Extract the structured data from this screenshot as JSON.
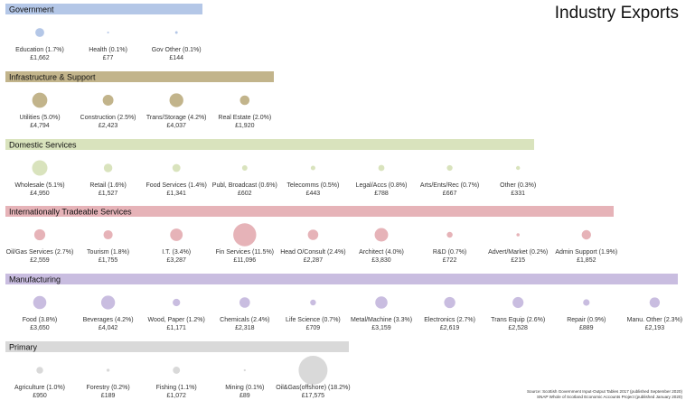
{
  "title": "Industry Exports",
  "source_lines": [
    "Source: Scottish Government Input-Output Tables 2017 (published September 2020)",
    "SNAP Whole of Scotland Economic Accounts Project (published January 2020)"
  ],
  "chart_data": {
    "type": "bubble",
    "title": "Industry Exports",
    "value_unit": "£",
    "groups": [
      {
        "name": "Government",
        "color": "#b4c7e7",
        "items": [
          {
            "label": "Education (1.7%)",
            "value": 1662,
            "value_label": "£1,662"
          },
          {
            "label": "Health (0.1%)",
            "value": 77,
            "value_label": "£77"
          },
          {
            "label": "Gov Other (0.1%)",
            "value": 144,
            "value_label": "£144"
          }
        ]
      },
      {
        "name": "Infrastructure & Support",
        "color": "#c2b48b",
        "items": [
          {
            "label": "Utilities (5.0%)",
            "value": 4794,
            "value_label": "£4,794"
          },
          {
            "label": "Construction (2.5%)",
            "value": 2423,
            "value_label": "£2,423"
          },
          {
            "label": "Trans/Storage (4.2%)",
            "value": 4037,
            "value_label": "£4,037"
          },
          {
            "label": "Real Estate (2.0%)",
            "value": 1920,
            "value_label": "£1,920"
          }
        ]
      },
      {
        "name": "Domestic Services",
        "color": "#d9e3bd",
        "items": [
          {
            "label": "Wholesale (5.1%)",
            "value": 4950,
            "value_label": "£4,950"
          },
          {
            "label": "Retail (1.6%)",
            "value": 1527,
            "value_label": "£1,527"
          },
          {
            "label": "Food Services (1.4%)",
            "value": 1341,
            "value_label": "£1,341"
          },
          {
            "label": "Publ, Broadcast (0.6%)",
            "value": 602,
            "value_label": "£602"
          },
          {
            "label": "Telecomms (0.5%)",
            "value": 443,
            "value_label": "£443"
          },
          {
            "label": "Legal/Accs (0.8%)",
            "value": 788,
            "value_label": "£788"
          },
          {
            "label": "Arts/Ents/Rec (0.7%)",
            "value": 667,
            "value_label": "£667"
          },
          {
            "label": "Other (0.3%)",
            "value": 331,
            "value_label": "£331"
          }
        ]
      },
      {
        "name": "Internationally Tradeable Services",
        "color": "#e6b3b8",
        "items": [
          {
            "label": "Oil/Gas Services (2.7%)",
            "value": 2559,
            "value_label": "£2,559"
          },
          {
            "label": "Tourism (1.8%)",
            "value": 1755,
            "value_label": "£1,755"
          },
          {
            "label": "I.T. (3.4%)",
            "value": 3287,
            "value_label": "£3,287"
          },
          {
            "label": "Fin Services (11.5%)",
            "value": 11096,
            "value_label": "£11,096"
          },
          {
            "label": "Head O/Consult (2.4%)",
            "value": 2287,
            "value_label": "£2,287"
          },
          {
            "label": "Architect (4.0%)",
            "value": 3830,
            "value_label": "£3,830"
          },
          {
            "label": "R&D (0.7%)",
            "value": 722,
            "value_label": "£722"
          },
          {
            "label": "Advert/Market (0.2%)",
            "value": 215,
            "value_label": "£215"
          },
          {
            "label": "Admin Support (1.9%)",
            "value": 1852,
            "value_label": "£1,852"
          }
        ]
      },
      {
        "name": "Manufacturing",
        "color": "#c9bde0",
        "items": [
          {
            "label": "Food (3.8%)",
            "value": 3650,
            "value_label": "£3,650"
          },
          {
            "label": "Beverages (4.2%)",
            "value": 4042,
            "value_label": "£4,042"
          },
          {
            "label": "Wood, Paper (1.2%)",
            "value": 1171,
            "value_label": "£1,171"
          },
          {
            "label": "Chemicals (2.4%)",
            "value": 2318,
            "value_label": "£2,318"
          },
          {
            "label": "Life Science (0.7%)",
            "value": 709,
            "value_label": "£709"
          },
          {
            "label": "Metal/Machine (3.3%)",
            "value": 3159,
            "value_label": "£3,159"
          },
          {
            "label": "Electronics (2.7%)",
            "value": 2619,
            "value_label": "£2,619"
          },
          {
            "label": "Trans Equip (2.6%)",
            "value": 2528,
            "value_label": "£2,528"
          },
          {
            "label": "Repair (0.9%)",
            "value": 889,
            "value_label": "£889"
          },
          {
            "label": "Manu. Other (2.3%)",
            "value": 2193,
            "value_label": "£2,193"
          }
        ]
      },
      {
        "name": "Primary",
        "color": "#d9d9d9",
        "items": [
          {
            "label": "Agriculture (1.0%)",
            "value": 950,
            "value_label": "£950"
          },
          {
            "label": "Forestry (0.2%)",
            "value": 189,
            "value_label": "£189"
          },
          {
            "label": "Fishing (1.1%)",
            "value": 1072,
            "value_label": "£1,072"
          },
          {
            "label": "Mining (0.1%)",
            "value": 89,
            "value_label": "£89"
          },
          {
            "label": "Oil&Gas(offshore) (18.2%)",
            "value": 17575,
            "value_label": "£17,575"
          }
        ]
      }
    ]
  }
}
